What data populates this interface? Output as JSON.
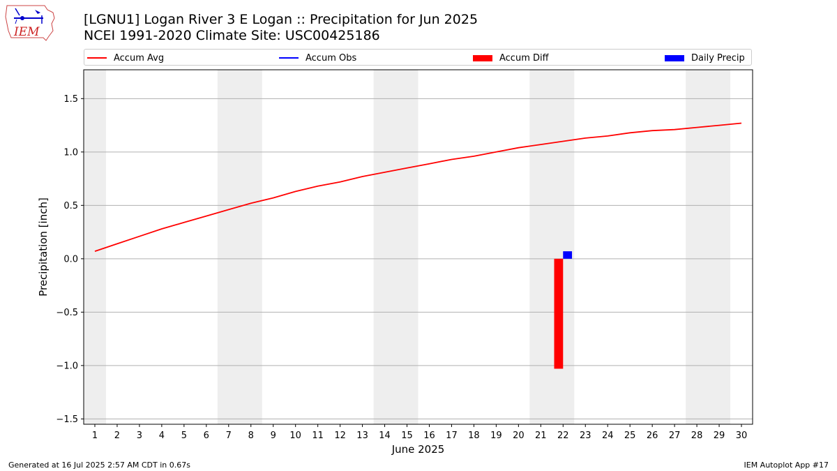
{
  "logo": {
    "text": "IEM"
  },
  "chart_data": {
    "type": "bar",
    "title": "[LGNU1] Logan River 3 E Logan :: Precipitation for Jun 2025",
    "subtitle": "NCEI 1991-2020 Climate Site: USC00425186",
    "xlabel": "June 2025",
    "ylabel": "Precipitation [inch]",
    "xlim": [
      0.5,
      30.5
    ],
    "ylim": [
      -1.55,
      1.77
    ],
    "yticks": [
      -1.5,
      -1.0,
      -0.5,
      0.0,
      0.5,
      1.0,
      1.5
    ],
    "ytick_labels": [
      "−1.5",
      "−1.0",
      "−0.5",
      "0.0",
      "0.5",
      "1.0",
      "1.5"
    ],
    "xticks": [
      1,
      2,
      3,
      4,
      5,
      6,
      7,
      8,
      9,
      10,
      11,
      12,
      13,
      14,
      15,
      16,
      17,
      18,
      19,
      20,
      21,
      22,
      23,
      24,
      25,
      26,
      27,
      28,
      29,
      30
    ],
    "xtick_labels": [
      "1",
      "2",
      "3",
      "4",
      "5",
      "6",
      "7",
      "8",
      "9",
      "10",
      "11",
      "12",
      "13",
      "14",
      "15",
      "16",
      "17",
      "18",
      "19",
      "20",
      "21",
      "22",
      "23",
      "24",
      "25",
      "26",
      "27",
      "28",
      "29",
      "30"
    ],
    "grid": "y",
    "legend_position": "top",
    "weekend_bands": [
      [
        0.5,
        1.5
      ],
      [
        6.5,
        8.5
      ],
      [
        13.5,
        15.5
      ],
      [
        20.5,
        22.5
      ],
      [
        27.5,
        29.5
      ]
    ],
    "colors": {
      "accum_avg": "#ff0000",
      "accum_obs": "#0000ff",
      "accum_diff": "#ff0000",
      "daily_precip": "#0000ff",
      "weekend": "#eeeeee",
      "grid": "#b0b0b0"
    },
    "series": [
      {
        "name": "Accum Avg",
        "kind": "line",
        "x": [
          1,
          2,
          3,
          4,
          5,
          6,
          7,
          8,
          9,
          10,
          11,
          12,
          13,
          14,
          15,
          16,
          17,
          18,
          19,
          20,
          21,
          22,
          23,
          24,
          25,
          26,
          27,
          28,
          29,
          30
        ],
        "values": [
          0.07,
          0.14,
          0.21,
          0.28,
          0.34,
          0.4,
          0.46,
          0.52,
          0.57,
          0.63,
          0.68,
          0.72,
          0.77,
          0.81,
          0.85,
          0.89,
          0.93,
          0.96,
          1.0,
          1.04,
          1.07,
          1.1,
          1.13,
          1.15,
          1.18,
          1.2,
          1.21,
          1.23,
          1.25,
          1.27
        ]
      },
      {
        "name": "Accum Obs",
        "kind": "line",
        "x": [],
        "values": []
      },
      {
        "name": "Accum Diff",
        "kind": "bar",
        "x": [
          22
        ],
        "values": [
          -1.03
        ]
      },
      {
        "name": "Daily Precip",
        "kind": "bar",
        "x": [
          22
        ],
        "values": [
          0.07
        ]
      }
    ]
  },
  "footer": {
    "left": "Generated at 16 Jul 2025 2:57 AM CDT in 0.67s",
    "right": "IEM Autoplot App #17"
  }
}
